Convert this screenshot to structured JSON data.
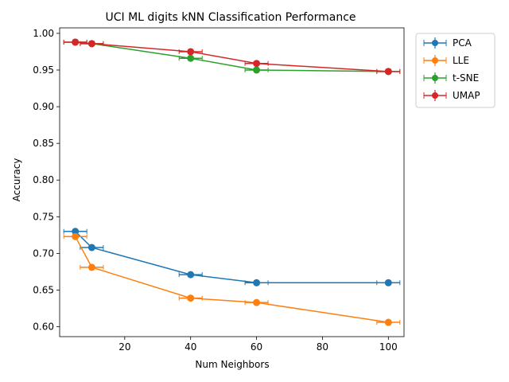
{
  "chart_data": {
    "type": "line",
    "title": "UCI ML digits kNN Classification Performance",
    "xlabel": "Num Neighbors",
    "ylabel": "Accuracy",
    "xlim": [
      0.25,
      104.75
    ],
    "ylim": [
      0.5865,
      1.0075
    ],
    "xticks": [
      20,
      40,
      60,
      80,
      100
    ],
    "yticks": [
      0.6,
      0.65,
      0.7,
      0.75,
      0.8,
      0.85,
      0.9,
      0.95,
      1.0
    ],
    "xtick_labels": [
      "20",
      "40",
      "60",
      "80",
      "100"
    ],
    "ytick_labels": [
      "0.60",
      "0.65",
      "0.70",
      "0.75",
      "0.80",
      "0.85",
      "0.90",
      "0.95",
      "1.00"
    ],
    "x": [
      5,
      10,
      40,
      60,
      100
    ],
    "legend_position": "outside-top-right",
    "grid": false,
    "series": [
      {
        "name": "PCA",
        "color": "#1f77b4",
        "values": [
          0.73,
          0.708,
          0.671,
          0.66,
          0.66
        ],
        "xerr": [
          3.5,
          3.5,
          3.5,
          3.5,
          3.5
        ]
      },
      {
        "name": "LLE",
        "color": "#ff7f0e",
        "values": [
          0.723,
          0.681,
          0.639,
          0.633,
          0.606
        ],
        "xerr": [
          3.5,
          3.5,
          3.5,
          3.5,
          3.5
        ]
      },
      {
        "name": "t-SNE",
        "color": "#2ca02c",
        "values": [
          0.988,
          0.986,
          0.966,
          0.95,
          0.948
        ],
        "xerr": [
          3.5,
          3.5,
          3.5,
          3.5,
          3.5
        ]
      },
      {
        "name": "UMAP",
        "color": "#d62728",
        "values": [
          0.988,
          0.986,
          0.975,
          0.959,
          0.948
        ],
        "xerr": [
          3.5,
          3.5,
          3.5,
          3.5,
          3.5
        ]
      }
    ]
  }
}
